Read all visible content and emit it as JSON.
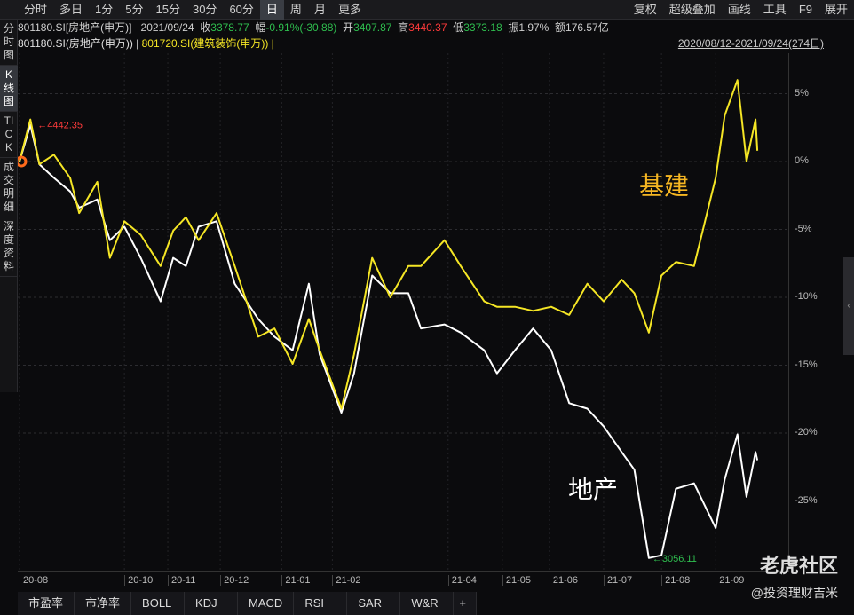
{
  "toolbar": {
    "left": [
      "分时",
      "多日",
      "1分",
      "5分",
      "15分",
      "30分",
      "60分",
      "日",
      "周",
      "月",
      "更多"
    ],
    "selected": "日",
    "right": [
      "复权",
      "超级叠加",
      "画线",
      "工具",
      "F9",
      "展开"
    ]
  },
  "side_tabs": [
    "分时图",
    "K线图",
    "TICK",
    "成交明细",
    "深度资料"
  ],
  "side_selected": "K线图",
  "quote": {
    "code": "801180.SI[房地产(申万)]",
    "date": "2021/09/24",
    "close_label": "收",
    "close": "3378.77",
    "chg_label": "幅",
    "chg": "-0.91%(-30.88)",
    "open_label": "开",
    "open": "3407.87",
    "high_label": "高",
    "high": "3440.37",
    "low_label": "低",
    "low": "3373.18",
    "amp_label": "振",
    "amp": "1.97%",
    "amt_label": "额",
    "amt": "176.57亿"
  },
  "overlay": {
    "s1": "801180.SI(房地产(申万))",
    "sep": "|",
    "s2": "801720.SI(建筑装饰(申万))",
    "sep2": "|",
    "range": "2020/08/12-2021/09/24(274日)"
  },
  "bottom_tabs": [
    "市盈率",
    "市净率",
    "BOLL",
    "KDJ",
    "MACD",
    "RSI",
    "SAR",
    "W&R",
    "+"
  ],
  "watermark": {
    "logo": "老虎社区",
    "user": "@投资理财吉米"
  },
  "colors": {
    "white_series": "#ffffff",
    "yellow_series": "#f5e625",
    "up": "#ff3b3b",
    "down": "#2fbf4f"
  },
  "chart_data": {
    "type": "line",
    "ylabel": "",
    "y_ticks": [
      "5%",
      "0%",
      "-5%",
      "-10%",
      "-15%",
      "-20%",
      "-25%"
    ],
    "ylim": [
      -30,
      7
    ],
    "x_ticks": [
      "20-08",
      "20-10",
      "20-11",
      "20-12",
      "21-01",
      "21-02",
      "21-04",
      "21-05",
      "21-06",
      "21-07",
      "21-08",
      "21-09"
    ],
    "x_tick_dates": [
      "2020-08-12",
      "2020-10-09",
      "2020-11-02",
      "2020-12-01",
      "2021-01-04",
      "2021-02-01",
      "2021-04-06",
      "2021-05-06",
      "2021-06-01",
      "2021-07-01",
      "2021-08-02",
      "2021-09-01"
    ],
    "grid": true,
    "annotations": {
      "max_label": "4442.35",
      "min_label": "3056.11",
      "label_white": "地产",
      "label_yellow": "基建"
    },
    "x": [
      "2020-08-12",
      "2020-08-18",
      "2020-08-23",
      "2020-08-31",
      "2020-09-09",
      "2020-09-14",
      "2020-09-24",
      "2020-10-01",
      "2020-10-09",
      "2020-10-18",
      "2020-10-29",
      "2020-11-05",
      "2020-11-12",
      "2020-11-19",
      "2020-11-29",
      "2020-12-09",
      "2020-12-22",
      "2020-12-31",
      "2021-01-10",
      "2021-01-19",
      "2021-01-25",
      "2021-02-06",
      "2021-02-13",
      "2021-02-23",
      "2021-03-05",
      "2021-03-15",
      "2021-03-22",
      "2021-04-04",
      "2021-04-13",
      "2021-04-26",
      "2021-05-03",
      "2021-05-13",
      "2021-05-23",
      "2021-06-02",
      "2021-06-12",
      "2021-06-22",
      "2021-07-01",
      "2021-07-11",
      "2021-07-18",
      "2021-07-26",
      "2021-08-02",
      "2021-08-10",
      "2021-08-20",
      "2021-09-01",
      "2021-09-06",
      "2021-09-13",
      "2021-09-18",
      "2021-09-23",
      "2021-09-24"
    ],
    "series": [
      {
        "name": "801180.SI(房地产(申万))",
        "color": "#ffffff",
        "values": [
          0,
          2.7,
          -0.2,
          -1.2,
          -2.2,
          -3.4,
          -2.8,
          -5.8,
          -4.8,
          -7.1,
          -10.3,
          -7.1,
          -7.7,
          -4.8,
          -4.4,
          -9.0,
          -11.6,
          -12.9,
          -13.9,
          -9.0,
          -14.2,
          -18.5,
          -15.6,
          -8.4,
          -9.7,
          -9.7,
          -12.3,
          -12.0,
          -12.6,
          -13.9,
          -15.6,
          -13.9,
          -12.3,
          -13.9,
          -17.8,
          -18.2,
          -19.5,
          -21.4,
          -22.7,
          -29.2,
          -29.0,
          -24.1,
          -23.7,
          -27.0,
          -23.4,
          -20.1,
          -24.7,
          -21.4,
          -22.0
        ]
      },
      {
        "name": "801720.SI(建筑装饰(申万))",
        "color": "#f5e625",
        "values": [
          0,
          3.1,
          -0.2,
          0.5,
          -1.2,
          -3.8,
          -1.5,
          -7.1,
          -4.4,
          -5.4,
          -7.7,
          -5.1,
          -4.1,
          -5.8,
          -3.8,
          -7.7,
          -12.9,
          -12.3,
          -14.9,
          -11.6,
          -13.9,
          -18.2,
          -14.2,
          -7.1,
          -10.0,
          -7.7,
          -7.7,
          -5.8,
          -7.7,
          -10.3,
          -10.7,
          -10.7,
          -11.0,
          -10.7,
          -11.3,
          -9.0,
          -10.3,
          -8.7,
          -9.7,
          -12.6,
          -8.4,
          -7.4,
          -7.7,
          -1.2,
          3.4,
          6.0,
          0.0,
          3.1,
          0.8
        ]
      }
    ]
  }
}
